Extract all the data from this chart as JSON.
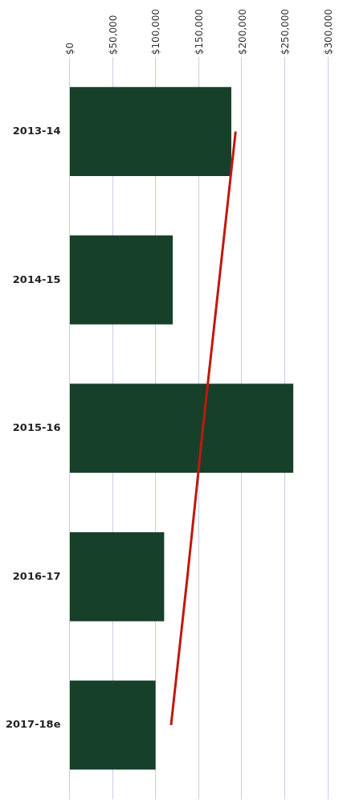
{
  "chart_data": {
    "type": "bar",
    "orientation": "horizontal",
    "categories": [
      "2013-14",
      "2014-15",
      "2015-16",
      "2016-17",
      "2017-18e"
    ],
    "series": [
      {
        "color": "#17402b",
        "values": [
          188000,
          120000,
          260000,
          110000,
          100000
        ]
      },
      {
        "type": "line",
        "color": "#c0180c",
        "values": [
          193000,
          174000,
          155000,
          137000,
          118000
        ],
        "marker": "none"
      }
    ],
    "xlim": [
      0,
      300000
    ],
    "xticks": [
      {
        "value": 0,
        "label": "$0"
      },
      {
        "value": 50000,
        "label": "$50,000"
      },
      {
        "value": 100000,
        "label": "$100,000"
      },
      {
        "value": 150000,
        "label": "$150,000"
      },
      {
        "value": 200000,
        "label": "$200,000"
      },
      {
        "value": 250000,
        "label": "$250,000"
      },
      {
        "value": 300000,
        "label": "$300,000"
      }
    ],
    "grid": "x",
    "legend": false
  }
}
